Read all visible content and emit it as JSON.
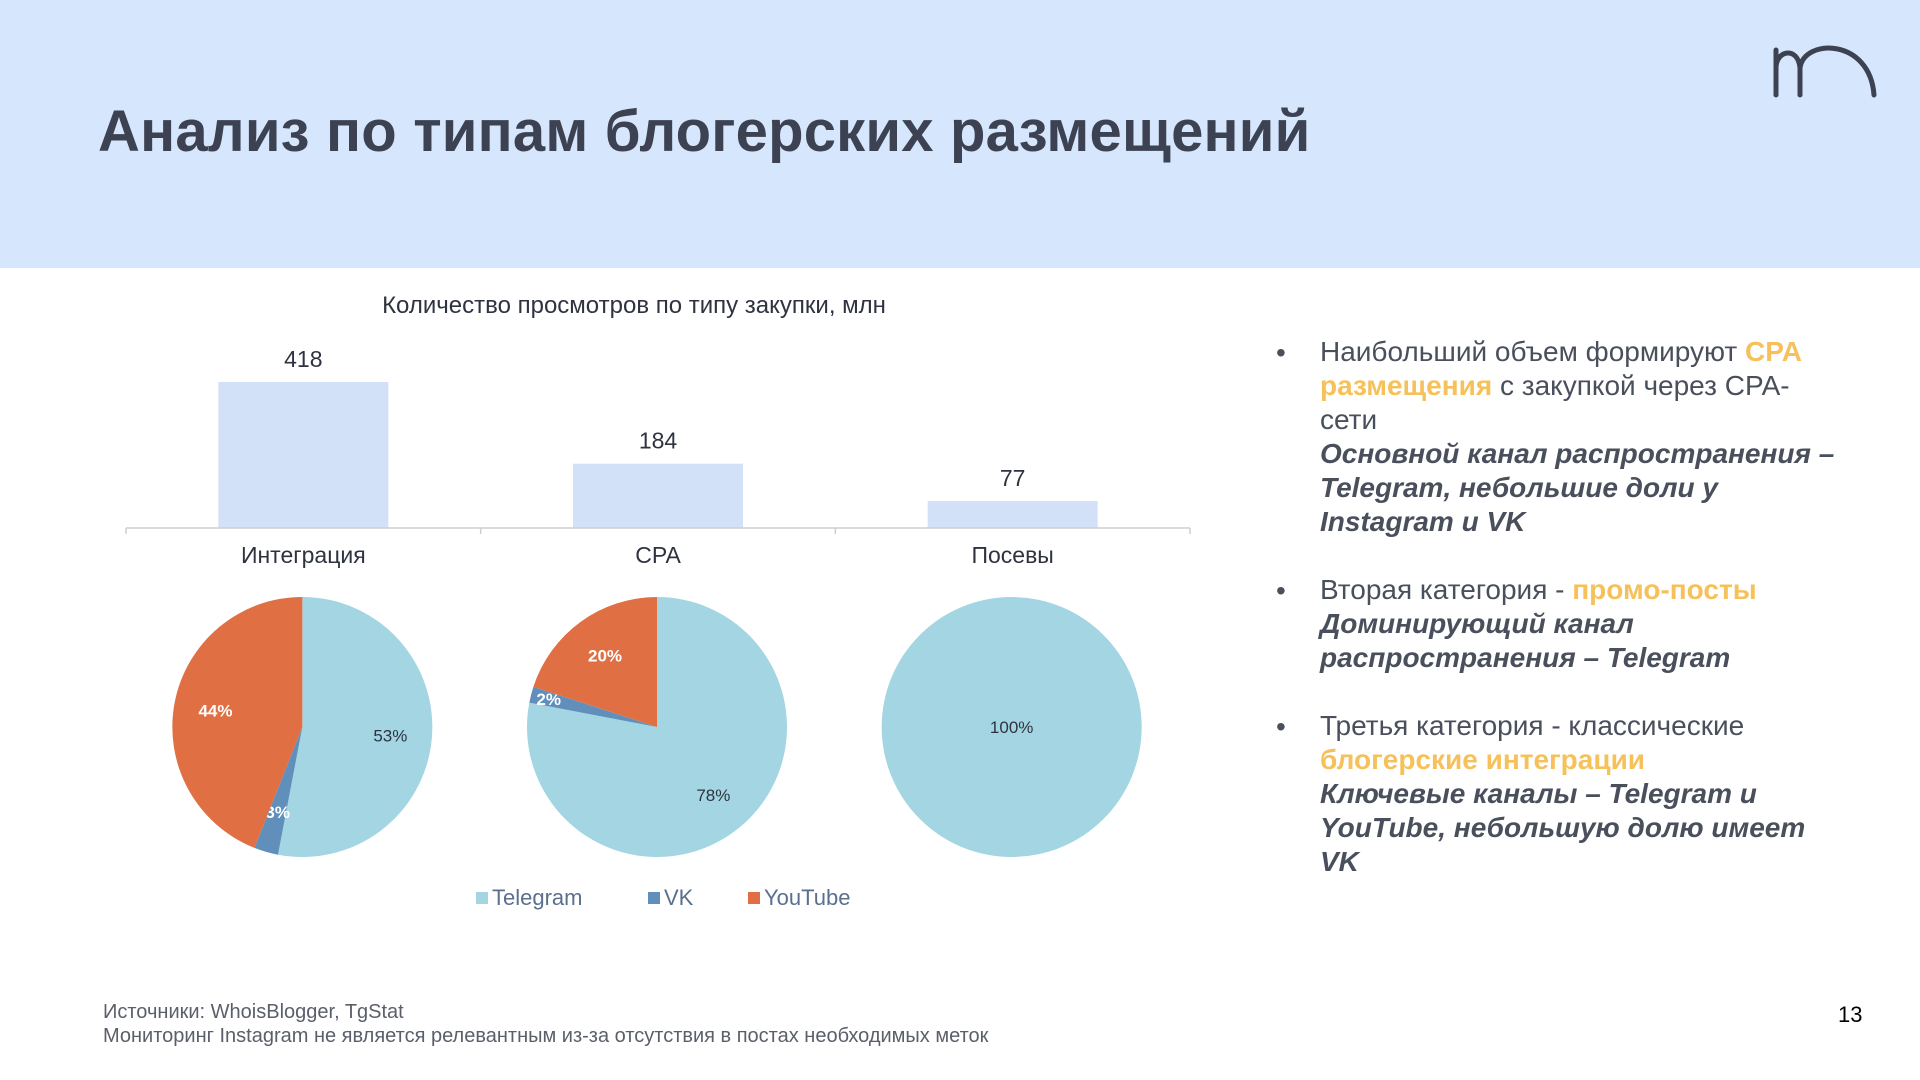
{
  "slide": {
    "title": "Анализ по типам блогерских размещений",
    "page_number": "13",
    "footer": {
      "sources": "Источники: WhoisBlogger, TgStat",
      "note": "Мониторинг Instagram не является релевантным из-за отсутствия в постах необходимых меток"
    }
  },
  "colors": {
    "header_bg": "#d6e6fd",
    "bar": "#d2e1f8",
    "telegram": "#a3d5e2",
    "vk": "#5f8fba",
    "youtube": "#e07044",
    "highlight": "#f6c15a"
  },
  "bullets": [
    {
      "parts": [
        "Наибольший объем формируют ",
        "CPA размещения",
        " с закупкой через CPA-сети"
      ],
      "sub": "Основной канал распространения – Telegram, небольшие доли у Instagram и VK"
    },
    {
      "parts": [
        "Вторая категория - ",
        "промо-посты",
        ""
      ],
      "sub": "Доминирующий канал распространения – Telegram"
    },
    {
      "parts": [
        "Третья категория - классические ",
        "блогерские интеграции",
        ""
      ],
      "sub": "Ключевые каналы – Telegram и YouTube, небольшую долю имеет VK"
    }
  ],
  "chart_data": [
    {
      "type": "bar",
      "title": "Количество просмотров по типу закупки, млн",
      "categories": [
        "Интеграция",
        "CPA",
        "Посевы"
      ],
      "values": [
        418,
        184,
        77
      ],
      "data_labels": [
        "418",
        "184",
        "77"
      ],
      "ylim": [
        0,
        418
      ]
    },
    {
      "type": "pie",
      "category": "Интеграция",
      "labels": [
        "Telegram",
        "VK",
        "YouTube"
      ],
      "values": [
        53,
        3,
        44
      ],
      "data_labels": [
        "53%",
        "3%",
        "44%"
      ]
    },
    {
      "type": "pie",
      "category": "CPA",
      "labels": [
        "Telegram",
        "VK",
        "YouTube"
      ],
      "values": [
        78,
        2,
        20
      ],
      "data_labels": [
        "78%",
        "2%",
        "20%"
      ]
    },
    {
      "type": "pie",
      "category": "Посевы",
      "labels": [
        "Telegram",
        "VK",
        "YouTube"
      ],
      "values": [
        100,
        0,
        0
      ],
      "data_labels": [
        "100%",
        "",
        ""
      ]
    }
  ],
  "legend": {
    "position": "bottom",
    "items": [
      {
        "label": "Telegram",
        "color": "#a3d5e2"
      },
      {
        "label": "VK",
        "color": "#5f8fba"
      },
      {
        "label": "YouTube",
        "color": "#e07044"
      }
    ]
  }
}
